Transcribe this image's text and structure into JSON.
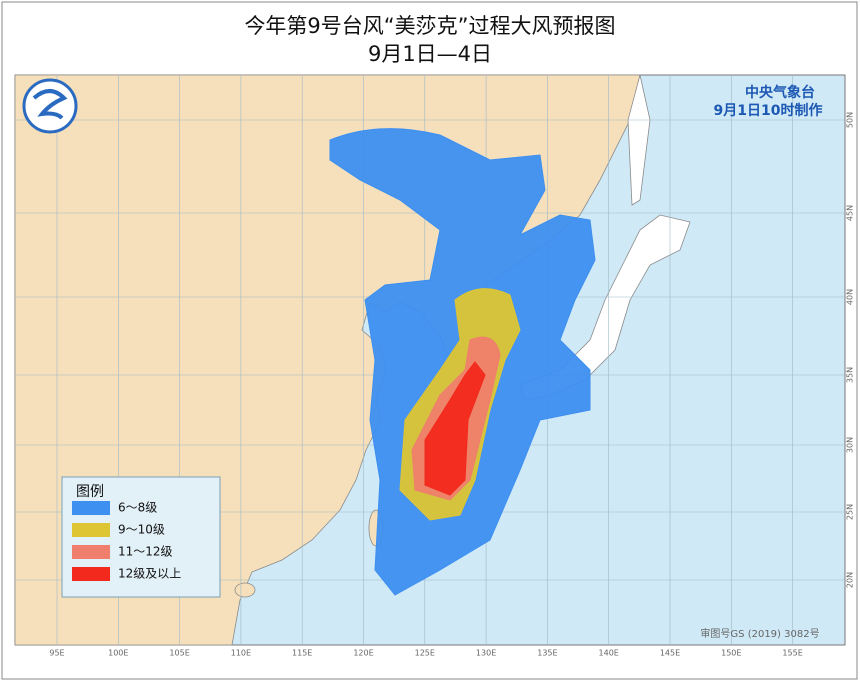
{
  "header": {
    "title": "今年第9号台风“美莎克”过程大风预报图",
    "subtitle": "9月1日—4日"
  },
  "issuer": {
    "name": "中央气象台",
    "issued": "9月1日10时制作"
  },
  "legend": {
    "title": "图例",
    "items": [
      {
        "label": "6～8级",
        "color": "#3d8ff0"
      },
      {
        "label": "9～10级",
        "color": "#ddc534"
      },
      {
        "label": "11～12级",
        "color": "#ef7f6c"
      },
      {
        "label": "12级及以上",
        "color": "#f2291c"
      }
    ]
  },
  "map": {
    "lon_labels": [
      "95E",
      "100E",
      "105E",
      "110E",
      "115E",
      "120E",
      "125E",
      "130E",
      "135E",
      "140E",
      "145E",
      "150E",
      "155E"
    ],
    "lat_labels": [
      "50N",
      "45N",
      "40N",
      "35N",
      "30N",
      "25N",
      "20N"
    ],
    "approval": "审图号GS (2019) 3082号"
  }
}
